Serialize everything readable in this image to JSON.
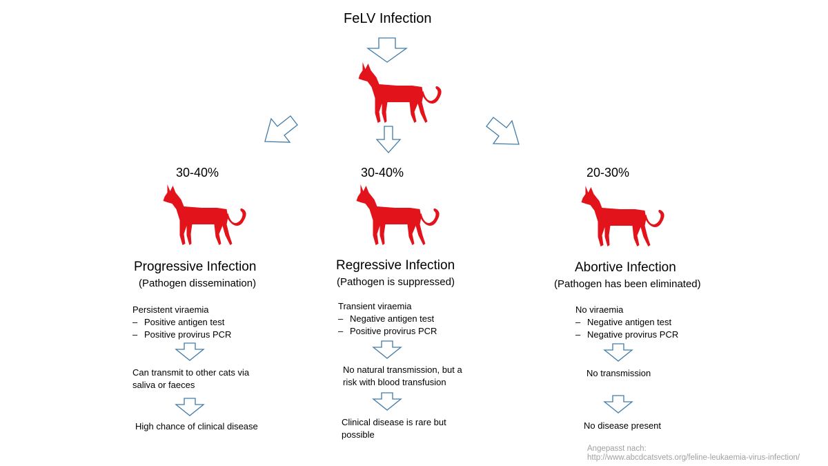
{
  "title": "FeLV Infection",
  "branches": [
    {
      "percent": "30-40%",
      "name": "Progressive Infection",
      "subtitle": "(Pathogen dissemination)",
      "lead": "Persistent viraemia",
      "bullets": [
        "Positive antigen test",
        "Positive provirus PCR"
      ],
      "transmission": "Can transmit to other cats via saliva or faeces",
      "outcome": "High chance of clinical disease"
    },
    {
      "percent": "30-40%",
      "name": "Regressive Infection",
      "subtitle": "(Pathogen is suppressed)",
      "lead": "Transient viraemia",
      "bullets": [
        "Negative antigen test",
        "Positive provirus PCR"
      ],
      "transmission": "No natural transmission, but a risk with blood transfusion",
      "outcome": "Clinical disease is rare but possible"
    },
    {
      "percent": "20-30%",
      "name": "Abortive Infection",
      "subtitle": "(Pathogen has been eliminated)",
      "lead": "No viraemia",
      "bullets": [
        "Negative antigen test",
        "Negative provirus PCR"
      ],
      "transmission": "No transmission",
      "outcome": "No disease present"
    }
  ],
  "credit": {
    "line1": "Angepasst nach:",
    "line2": "http://www.abcdcatsvets.org/feline-leukaemia-virus-infection/"
  },
  "colors": {
    "cat": "#e3131b",
    "arrow": "#3f7aa8",
    "credit": "#a0a0a0"
  }
}
